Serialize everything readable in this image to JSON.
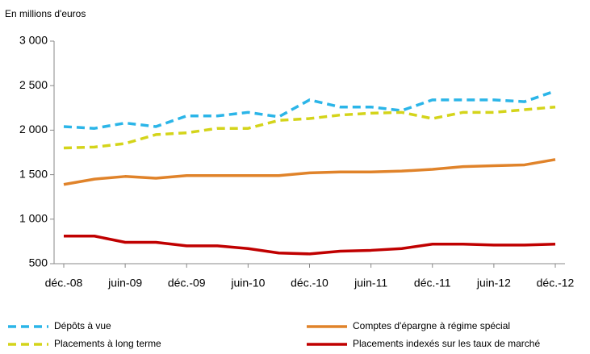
{
  "chart_data": {
    "type": "line",
    "subtitle": "En millions d'euros",
    "categories": [
      "déc.-08",
      null,
      "juin-09",
      null,
      "déc.-09",
      null,
      "juin-10",
      null,
      "déc.-10",
      null,
      "juin-11",
      null,
      "déc.-11",
      null,
      "juin-12",
      null,
      "déc.-12"
    ],
    "series": [
      {
        "name": "Dépôts à vue",
        "color": "#2bb5e8",
        "dashed": true,
        "values": [
          2040,
          2020,
          2080,
          2040,
          2160,
          2160,
          2200,
          2150,
          2340,
          2260,
          2260,
          2220,
          2340,
          2340,
          2340,
          2320,
          2440
        ]
      },
      {
        "name": "Comptes d'épargne à régime spécial",
        "color": "#e0832a",
        "dashed": false,
        "values": [
          1390,
          1450,
          1480,
          1460,
          1490,
          1490,
          1490,
          1490,
          1520,
          1530,
          1530,
          1540,
          1560,
          1590,
          1600,
          1610,
          1670
        ]
      },
      {
        "name": "Placements à long terme",
        "color": "#d4d41a",
        "dashed": true,
        "values": [
          1800,
          1810,
          1850,
          1950,
          1970,
          2020,
          2020,
          2110,
          2130,
          2170,
          2190,
          2200,
          2130,
          2200,
          2200,
          2230,
          2260
        ]
      },
      {
        "name": "Placements indexés sur les taux de marché",
        "color": "#c00000",
        "dashed": false,
        "values": [
          810,
          810,
          740,
          740,
          700,
          700,
          670,
          620,
          610,
          640,
          650,
          670,
          720,
          720,
          710,
          710,
          720
        ]
      }
    ],
    "ylim": [
      500,
      3000
    ],
    "yticks": [
      500,
      {
        "value": 1000,
        "label": "1 000"
      },
      {
        "value": 1500,
        "label": "1 500"
      },
      {
        "value": 2000,
        "label": "2 000"
      },
      {
        "value": 2500,
        "label": "2 500"
      },
      {
        "value": 3000,
        "label": "3 000"
      }
    ],
    "grid": false,
    "legend": "bottom"
  }
}
